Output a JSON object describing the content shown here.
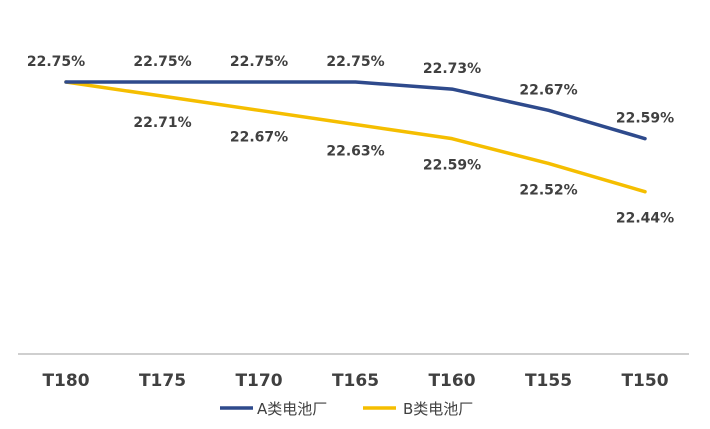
{
  "chart_data": {
    "type": "line",
    "categories": [
      "T180",
      "T175",
      "T170",
      "T165",
      "T160",
      "T155",
      "T150"
    ],
    "series": [
      {
        "name": "A类电池厂",
        "color": "#2E4A8C",
        "values": [
          22.75,
          22.75,
          22.75,
          22.75,
          22.73,
          22.67,
          22.59
        ],
        "labels": [
          "22.75%",
          "22.75%",
          "22.75%",
          "22.75%",
          "22.73%",
          "22.67%",
          "22.59%"
        ]
      },
      {
        "name": "B类电池厂",
        "color": "#F5BE00",
        "values": [
          22.75,
          22.71,
          22.67,
          22.63,
          22.59,
          22.52,
          22.44
        ],
        "labels": [
          "22.75%",
          "22.71%",
          "22.67%",
          "22.63%",
          "22.59%",
          "22.52%",
          "22.44%"
        ]
      }
    ],
    "legend": "bottom",
    "grid": false,
    "axis_color": "#BFBFBF",
    "label_color": "#404040"
  }
}
